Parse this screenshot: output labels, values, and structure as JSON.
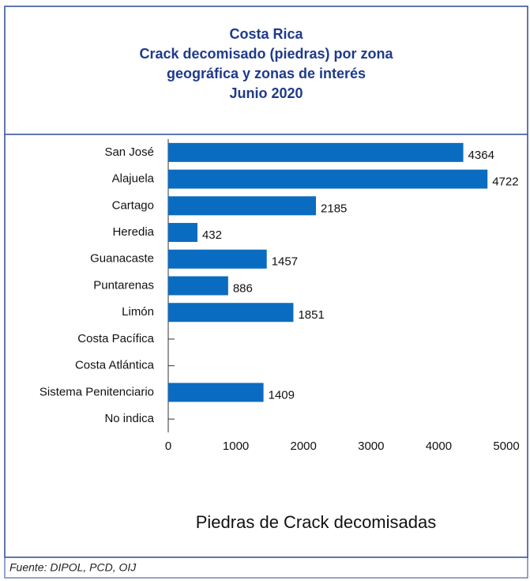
{
  "chart_data": {
    "type": "bar",
    "orientation": "horizontal",
    "title": [
      "Costa Rica",
      "Crack decomisado (piedras) por zona",
      "geográfica y zonas de interés",
      "Junio  2020"
    ],
    "categories": [
      "San José",
      "Alajuela",
      "Cartago",
      "Heredia",
      "Guanacaste",
      "Puntarenas",
      "Limón",
      "Costa Pacífica",
      "Costa Atlántica",
      "Sistema Penitenciario",
      "No indica"
    ],
    "values": [
      4364,
      4722,
      2185,
      432,
      1457,
      886,
      1851,
      null,
      null,
      1409,
      null
    ],
    "color": "#0a6cc0",
    "xlim": [
      0,
      5000
    ],
    "xticks": [
      0,
      1000,
      2000,
      3000,
      4000,
      5000
    ],
    "xlabel": "Piedras de Crack decomisadas",
    "source": "Fuente: DIPOL, PCD, OIJ"
  }
}
